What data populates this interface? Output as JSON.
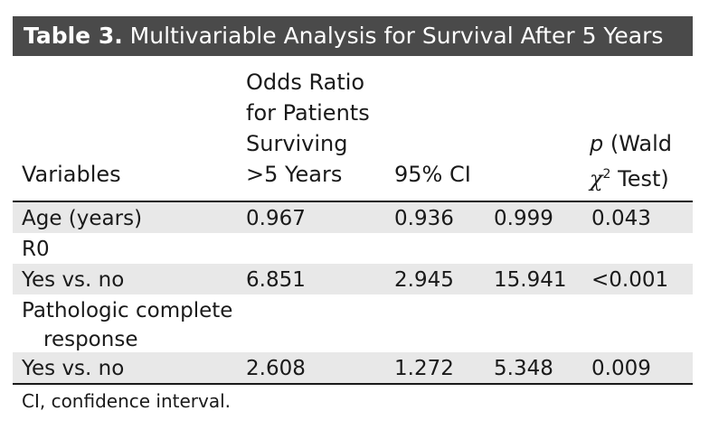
{
  "title": {
    "label": "Table 3.",
    "text": "Multivariable Analysis for Survival After 5 Years"
  },
  "headers": {
    "variables": "Variables",
    "odds_ratio_line1": "Odds Ratio",
    "odds_ratio_line2": "for Patients",
    "odds_ratio_line3": "Surviving",
    "odds_ratio_line4": ">5 Years",
    "ci": "95% CI",
    "p_letter": "p",
    "p_rest_line1": "(Wald",
    "p_chi": "χ",
    "p_sup": "2",
    "p_rest_line2": "Test)"
  },
  "rows": [
    {
      "variable": "Age (years)",
      "odds": "0.967",
      "ci_low": "0.936",
      "ci_high": "0.999",
      "p": "0.043"
    },
    {
      "variable": "R0",
      "odds": "",
      "ci_low": "",
      "ci_high": "",
      "p": ""
    },
    {
      "variable": "Yes vs. no",
      "odds": "6.851",
      "ci_low": "2.945",
      "ci_high": "15.941",
      "p": "<0.001"
    },
    {
      "variable_line1": "Pathologic complete",
      "variable_line2": "response",
      "odds": "",
      "ci_low": "",
      "ci_high": "",
      "p": ""
    },
    {
      "variable": "Yes vs. no",
      "odds": "2.608",
      "ci_low": "1.272",
      "ci_high": "5.348",
      "p": "0.009"
    }
  ],
  "footnote": "CI, confidence interval.",
  "colors": {
    "title_bg": "#4a4a4a",
    "row_shade": "#e8e8e8",
    "text": "#1a1a1a"
  }
}
